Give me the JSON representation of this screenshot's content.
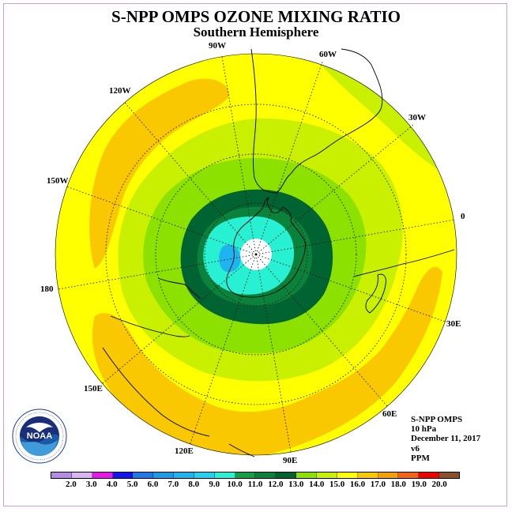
{
  "title": "S-NPP OMPS OZONE MIXING RATIO",
  "subtitle": "Southern Hemisphere",
  "longitude_labels": [
    "90W",
    "60W",
    "30W",
    "0",
    "30E",
    "60E",
    "90E",
    "120E",
    "150E",
    "180",
    "150W",
    "120W"
  ],
  "info": {
    "instrument": "S-NPP OMPS",
    "level": "10 hPa",
    "date": "December 11, 2017",
    "version": "v6",
    "units": "PPM"
  },
  "logo": {
    "text": "NOAA",
    "icon": "noaa-logo"
  },
  "colorbar": {
    "ticks": [
      "2.0",
      "3.0",
      "4.0",
      "5.0",
      "6.0",
      "7.0",
      "8.0",
      "9.0",
      "10.0",
      "11.0",
      "12.0",
      "13.0",
      "14.0",
      "15.0",
      "16.0",
      "17.0",
      "18.0",
      "19.0",
      "20.0"
    ],
    "colors": [
      "#b48ce6",
      "#d8b4f0",
      "#e619e6",
      "#1414f0",
      "#1e78e6",
      "#1e9be6",
      "#1eb4f0",
      "#23d2f0",
      "#28f0d2",
      "#14a046",
      "#0a823c",
      "#006432",
      "#8ce100",
      "#c8f000",
      "#ffff00",
      "#fac800",
      "#f5a000",
      "#f56414",
      "#f00000",
      "#8c5028"
    ]
  },
  "map_colors": {
    "yellow": "#ffff00",
    "lightgreen": "#c8f000",
    "green": "#8ce100",
    "orange": "#fac800",
    "darkgreen": "#006432",
    "midgreen": "#0a823c",
    "cyan": "#28f0d2",
    "blue": "#1eb4f0",
    "white": "#ffffff"
  }
}
